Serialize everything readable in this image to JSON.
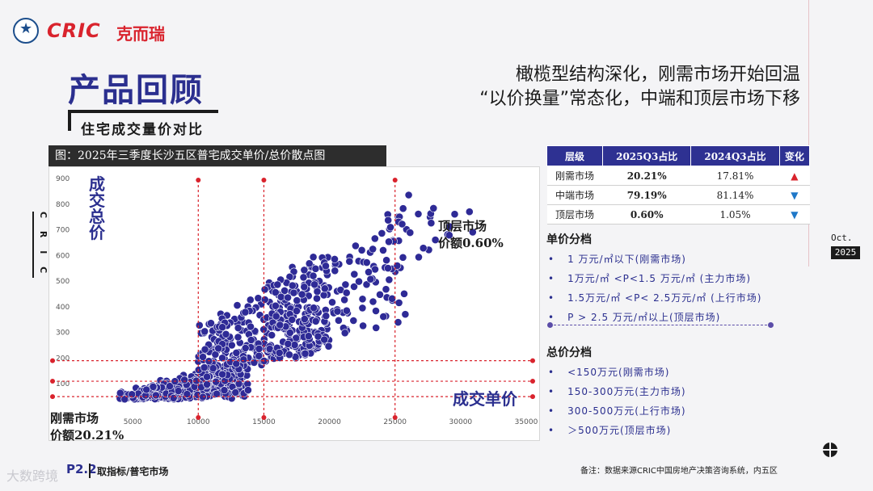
{
  "brand": {
    "logo_text": "CRIC",
    "logo_cn": "克而瑞",
    "side_text": "C R I C"
  },
  "title": "产品回顾",
  "subtitle": "住宅成交量价对比",
  "headline": [
    "橄榄型结构深化，刚需市场开始回温",
    "“以价换量”常态化，中端和顶层市场下移"
  ],
  "chart_caption": "图：2025年三季度长沙五区普宅成交单价/总价散点图",
  "chart_data": {
    "type": "scatter",
    "title": "图：2025年三季度长沙五区普宅成交单价/总价散点图",
    "xlabel": "成交单价",
    "ylabel": "成交总价",
    "xlim": [
      0,
      35000
    ],
    "ylim": [
      0,
      900
    ],
    "x_ticks": [
      "5000",
      "10000",
      "15000",
      "20000",
      "25000",
      "30000",
      "35000"
    ],
    "y_ticks": [
      "100",
      "200",
      "300",
      "400",
      "500",
      "600",
      "700",
      "800",
      "900"
    ],
    "vertical_reference": [
      10000,
      15000,
      25000
    ],
    "horizontal_reference": [
      50,
      110,
      190
    ],
    "annotations": [
      {
        "text": [
          "顶层市场",
          "价额0.60%"
        ]
      },
      {
        "text": [
          "刚需市场",
          "价额20.21%"
        ]
      }
    ],
    "series": [
      {
        "color": "#2e2a96",
        "clusters": [
          {
            "x_from": 4000,
            "x_to": 14000,
            "y_min_slope": 0.0045,
            "y_max_slope": 0.014,
            "count": 420
          },
          {
            "x_from": 10000,
            "x_to": 20000,
            "y_min_slope": 0.012,
            "y_max_slope": 0.032,
            "count": 360
          },
          {
            "x_from": 15000,
            "x_to": 26000,
            "y_min_slope": 0.014,
            "y_max_slope": 0.03,
            "count": 120
          },
          {
            "x_from": 22000,
            "x_to": 31000,
            "y_min_slope": 0.022,
            "y_max_slope": 0.032,
            "count": 40
          }
        ]
      }
    ]
  },
  "table": {
    "headers": [
      "层级",
      "2025Q3占比",
      "2024Q3占比",
      "变化"
    ],
    "rows": [
      {
        "tier": "刚需市场",
        "q3_2025": "20.21%",
        "q3_2024": "17.81%",
        "change": "up"
      },
      {
        "tier": "中端市场",
        "q3_2025": "79.19%",
        "q3_2024": "81.14%",
        "change": "down"
      },
      {
        "tier": "顶层市场",
        "q3_2025": "0.60%",
        "q3_2024": "1.05%",
        "change": "down"
      }
    ]
  },
  "unit_price": {
    "heading": "单价分档",
    "items": [
      "1 万元/㎡以下(刚需市场)",
      "1万元/㎡ <P<1.5 万元/㎡ (主力市场)",
      "1.5万元/㎡ <P< 2.5万元/㎡ (上行市场)",
      "P > 2.5 万元/㎡以上(顶层市场)"
    ]
  },
  "total_price": {
    "heading": "总价分档",
    "items": [
      "<150万元(刚需市场)",
      "150-300万元(主力市场)",
      "300-500万元(上行市场)",
      "＞500万元(顶层市场)"
    ]
  },
  "date": {
    "month": "Oct.",
    "year": "2025"
  },
  "footer": {
    "note": "备注：数据来源CRIC中国房地产决策咨询系统，内五区",
    "page": "P2.2",
    "source_left": "取指标/普宅市场",
    "watermark": "大数跨境"
  },
  "colors": {
    "accent": "#2e3192",
    "brand_red": "#d9232d",
    "dot": "#2e2a96",
    "ref_line": "#d9232d"
  }
}
